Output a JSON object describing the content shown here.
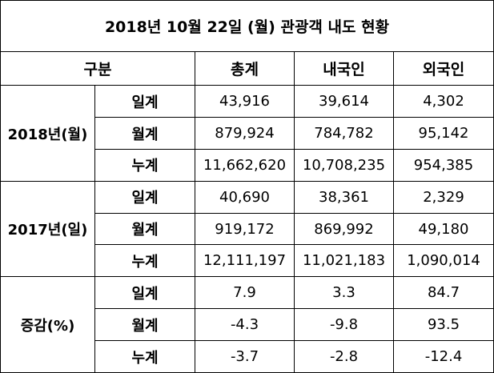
{
  "title": "2018년 10월 22일 (월) 관광객 내도 현황",
  "header": {
    "category": "구분",
    "columns": [
      "총계",
      "내국인",
      "외국인"
    ]
  },
  "groups": [
    {
      "label": "2018년(월)",
      "rows": [
        {
          "label": "일계",
          "values": [
            "43,916",
            "39,614",
            "4,302"
          ]
        },
        {
          "label": "월계",
          "values": [
            "879,924",
            "784,782",
            "95,142"
          ]
        },
        {
          "label": "누계",
          "values": [
            "11,662,620",
            "10,708,235",
            "954,385"
          ]
        }
      ]
    },
    {
      "label": "2017년(일)",
      "rows": [
        {
          "label": "일계",
          "values": [
            "40,690",
            "38,361",
            "2,329"
          ]
        },
        {
          "label": "월계",
          "values": [
            "919,172",
            "869,992",
            "49,180"
          ]
        },
        {
          "label": "누계",
          "values": [
            "12,111,197",
            "11,021,183",
            "1,090,014"
          ]
        }
      ]
    },
    {
      "label": "증감(%)",
      "rows": [
        {
          "label": "일계",
          "values": [
            "7.9",
            "3.3",
            "84.7"
          ]
        },
        {
          "label": "월계",
          "values": [
            "-4.3",
            "-9.8",
            "93.5"
          ]
        },
        {
          "label": "누계",
          "values": [
            "-3.7",
            "-2.8",
            "-12.4"
          ]
        }
      ]
    }
  ]
}
